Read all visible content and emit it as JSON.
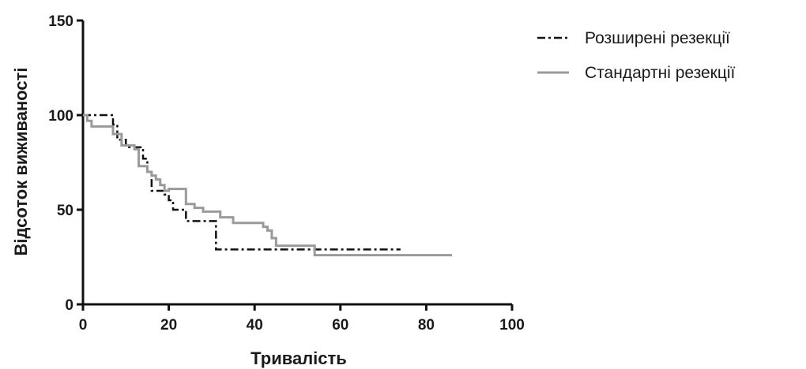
{
  "chart_data": {
    "type": "line",
    "xlabel": "Тривалість",
    "ylabel": "Відсоток виживаності",
    "xlim": [
      0,
      100
    ],
    "ylim": [
      0,
      150
    ],
    "xticks": [
      "0",
      "20",
      "40",
      "60",
      "80",
      "100"
    ],
    "yticks": [
      "0",
      "50",
      "100",
      "150"
    ],
    "legend_position": "top-right",
    "grid": false,
    "series": [
      {
        "name": "Розширені резекції",
        "style": "dash-dot",
        "color": "#111111",
        "step": true,
        "x": [
          0,
          6,
          7,
          8,
          10,
          14,
          15,
          16,
          19,
          20,
          21,
          24,
          30,
          31,
          74
        ],
        "y": [
          100,
          100,
          95,
          87,
          83,
          77,
          70,
          60,
          58,
          55,
          50,
          44,
          44,
          29,
          29
        ]
      },
      {
        "name": "Стандартні резекції",
        "style": "solid",
        "color": "#9a9a9a",
        "step": true,
        "x": [
          0,
          1,
          2,
          7,
          9,
          12,
          13,
          15,
          16,
          17,
          18,
          19,
          20,
          24,
          26,
          28,
          32,
          35,
          42,
          43,
          44,
          45,
          54,
          86
        ],
        "y": [
          100,
          97,
          94,
          90,
          84,
          82,
          73,
          70,
          68,
          66,
          63,
          60,
          61,
          53,
          51,
          49,
          46,
          43,
          41,
          39,
          35,
          31,
          26,
          26
        ]
      }
    ]
  }
}
